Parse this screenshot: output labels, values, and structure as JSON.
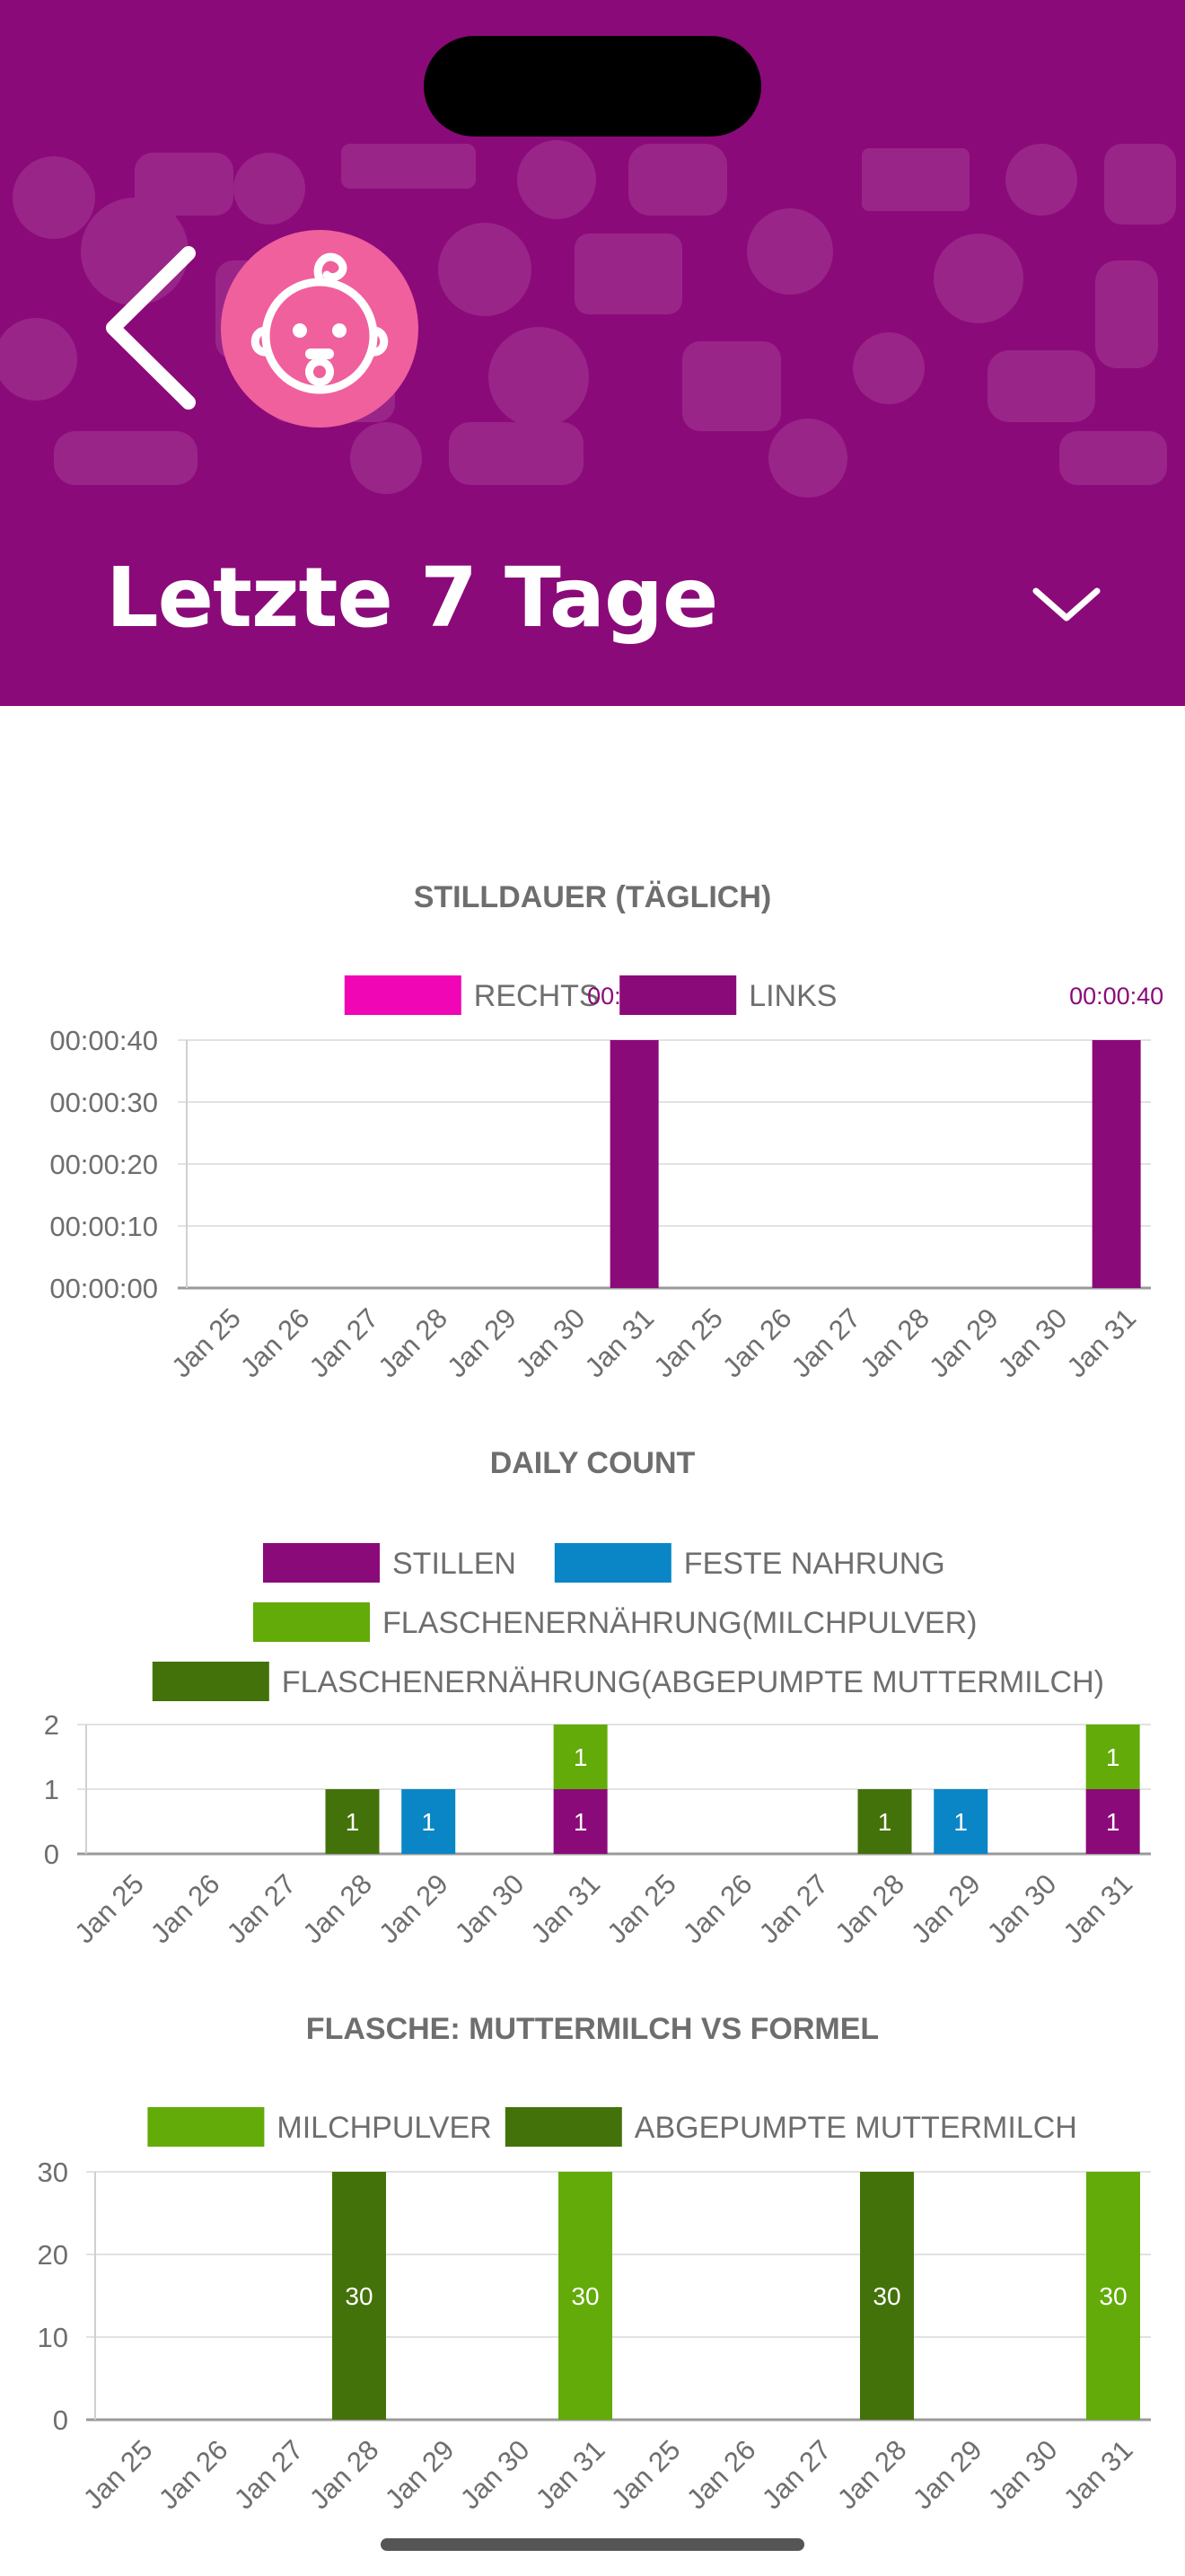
{
  "header": {
    "back_icon": "chevron-left-icon",
    "avatar_icon": "baby-face-icon",
    "title": "Letzte 7 Tage",
    "dropdown_icon": "chevron-down-icon",
    "background_color": "#8b0a79",
    "avatar_color": "#f0609c"
  },
  "chart_data": [
    {
      "type": "bar",
      "title": "STILLDAUER (TÄGLICH)",
      "categories": [
        "Jan 25",
        "Jan 26",
        "Jan 27",
        "Jan 28",
        "Jan 29",
        "Jan 30",
        "Jan 31",
        "Jan 25",
        "Jan 26",
        "Jan 27",
        "Jan 28",
        "Jan 29",
        "Jan 30",
        "Jan 31"
      ],
      "series": [
        {
          "name": "RECHTS",
          "color": "#f006b4",
          "values": [
            0,
            0,
            0,
            0,
            0,
            0,
            0,
            0,
            0,
            0,
            0,
            0,
            0,
            0
          ]
        },
        {
          "name": "LINKS",
          "color": "#8b0a79",
          "values": [
            0,
            0,
            0,
            0,
            0,
            0,
            40,
            0,
            0,
            0,
            0,
            0,
            0,
            40
          ]
        }
      ],
      "y_ticks": [
        "00:00:00",
        "00:00:10",
        "00:00:20",
        "00:00:30",
        "00:00:40"
      ],
      "ylim": [
        0,
        40
      ],
      "data_labels": [
        {
          "category_index": 6,
          "text": "00:00:40"
        },
        {
          "category_index": 13,
          "text": "00:00:40"
        }
      ],
      "label_color": "#8b0a79"
    },
    {
      "type": "bar",
      "title": "DAILY COUNT",
      "stacked": true,
      "categories": [
        "Jan 25",
        "Jan 26",
        "Jan 27",
        "Jan 28",
        "Jan 29",
        "Jan 30",
        "Jan 31",
        "Jan 25",
        "Jan 26",
        "Jan 27",
        "Jan 28",
        "Jan 29",
        "Jan 30",
        "Jan 31"
      ],
      "series": [
        {
          "name": "STILLEN",
          "color": "#8b0a79",
          "values": [
            0,
            0,
            0,
            0,
            0,
            0,
            1,
            0,
            0,
            0,
            0,
            0,
            0,
            1
          ]
        },
        {
          "name": "FESTE NAHRUNG",
          "color": "#0a86c6",
          "values": [
            0,
            0,
            0,
            0,
            1,
            0,
            0,
            0,
            0,
            0,
            0,
            1,
            0,
            0
          ]
        },
        {
          "name": "FLASCHENERNÄHRUNG(MILCHPULVER)",
          "color": "#62ab08",
          "values": [
            0,
            0,
            0,
            0,
            0,
            0,
            1,
            0,
            0,
            0,
            0,
            0,
            0,
            1
          ]
        },
        {
          "name": "FLASCHENERNÄHRUNG(ABGEPUMPTE MUTTERMILCH)",
          "color": "#44720a",
          "values": [
            0,
            0,
            0,
            1,
            0,
            0,
            0,
            0,
            0,
            0,
            1,
            0,
            0,
            0
          ]
        }
      ],
      "y_ticks": [
        "0",
        "1",
        "2"
      ],
      "ylim": [
        0,
        2
      ]
    },
    {
      "type": "bar",
      "title": "FLASCHE: MUTTERMILCH VS FORMEL",
      "stacked": true,
      "categories": [
        "Jan 25",
        "Jan 26",
        "Jan 27",
        "Jan 28",
        "Jan 29",
        "Jan 30",
        "Jan 31",
        "Jan 25",
        "Jan 26",
        "Jan 27",
        "Jan 28",
        "Jan 29",
        "Jan 30",
        "Jan 31"
      ],
      "series": [
        {
          "name": "MILCHPULVER",
          "color": "#62ab08",
          "values": [
            0,
            0,
            0,
            0,
            0,
            0,
            30,
            0,
            0,
            0,
            0,
            0,
            0,
            30
          ]
        },
        {
          "name": "ABGEPUMPTE MUTTERMILCH",
          "color": "#44720a",
          "values": [
            0,
            0,
            0,
            30,
            0,
            0,
            0,
            0,
            0,
            0,
            30,
            0,
            0,
            0
          ]
        }
      ],
      "y_ticks": [
        "0",
        "10",
        "20",
        "30"
      ],
      "ylim": [
        0,
        30
      ]
    }
  ]
}
